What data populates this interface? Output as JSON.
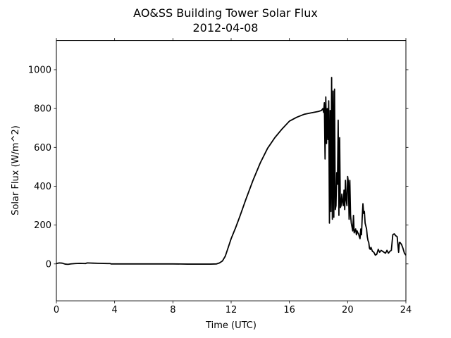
{
  "chart_data": {
    "type": "line",
    "title": "AO&SS Building Tower Solar Flux",
    "subtitle": "2012-04-08",
    "xlabel": "Time (UTC)",
    "ylabel": "Solar Flux (W/m^2)",
    "xlim": [
      0,
      24
    ],
    "ylim": [
      -190,
      1150
    ],
    "xticks": [
      0,
      4,
      8,
      12,
      16,
      20,
      24
    ],
    "yticks": [
      0,
      200,
      400,
      600,
      800,
      1000
    ],
    "grid": false,
    "legend": "none",
    "line_color": "#000000",
    "series": [
      {
        "x": [
          0.0,
          0.2,
          0.4,
          0.6,
          0.8,
          1.0,
          1.3,
          1.6,
          2.0,
          2.1,
          2.5,
          3.0,
          3.5,
          3.7,
          3.75,
          5.0,
          6.0,
          7.0,
          8.0,
          9.0,
          10.0,
          10.6,
          11.0,
          11.2,
          11.4,
          11.6,
          11.8,
          12.0,
          12.3,
          12.6,
          13.0,
          13.5,
          14.0,
          14.5,
          15.0,
          15.5,
          16.0,
          16.5,
          17.0,
          17.5,
          18.0,
          18.2,
          18.3,
          18.35,
          18.4,
          18.45,
          18.5,
          18.55,
          18.6,
          18.65,
          18.7,
          18.75,
          18.8,
          18.85,
          18.9,
          18.95,
          19.0,
          19.05,
          19.1,
          19.15,
          19.2,
          19.25,
          19.3,
          19.35,
          19.4,
          19.45,
          19.5,
          19.55,
          19.6,
          19.65,
          19.7,
          19.75,
          19.8,
          19.85,
          19.9,
          19.95,
          20.0,
          20.05,
          20.1,
          20.15,
          20.2,
          20.25,
          20.3,
          20.35,
          20.4,
          20.45,
          20.5,
          20.55,
          20.6,
          20.65,
          20.7,
          20.75,
          20.8,
          20.85,
          20.9,
          20.95,
          21.0,
          21.05,
          21.1,
          21.15,
          21.2,
          21.3,
          21.35,
          21.4,
          21.45,
          21.5,
          21.55,
          21.6,
          21.7,
          21.8,
          21.9,
          22.0,
          22.1,
          22.2,
          22.3,
          22.4,
          22.5,
          22.6,
          22.7,
          22.8,
          22.9,
          23.0,
          23.1,
          23.2,
          23.3,
          23.4,
          23.5,
          23.55,
          23.6,
          23.7,
          23.8,
          23.9,
          24.0
        ],
        "y": [
          2,
          5,
          4,
          -1,
          -2,
          0,
          2,
          3,
          2,
          5,
          4,
          3,
          2,
          2,
          0,
          0,
          0,
          0,
          0,
          -1,
          -1,
          -1,
          0,
          5,
          15,
          40,
          85,
          130,
          185,
          245,
          330,
          430,
          520,
          595,
          650,
          695,
          735,
          755,
          770,
          778,
          785,
          790,
          800,
          780,
          830,
          540,
          860,
          620,
          800,
          640,
          840,
          210,
          790,
          270,
          960,
          230,
          890,
          240,
          900,
          280,
          300,
          470,
          410,
          740,
          250,
          650,
          290,
          300,
          360,
          320,
          300,
          380,
          280,
          430,
          330,
          300,
          450,
          420,
          230,
          430,
          250,
          210,
          190,
          170,
          250,
          160,
          170,
          180,
          150,
          170,
          160,
          155,
          140,
          130,
          180,
          150,
          240,
          310,
          260,
          270,
          210,
          180,
          140,
          120,
          110,
          80,
          75,
          85,
          65,
          60,
          45,
          50,
          75,
          60,
          70,
          65,
          60,
          55,
          70,
          55,
          65,
          70,
          150,
          155,
          145,
          140,
          60,
          110,
          110,
          100,
          80,
          55,
          45
        ]
      }
    ]
  }
}
